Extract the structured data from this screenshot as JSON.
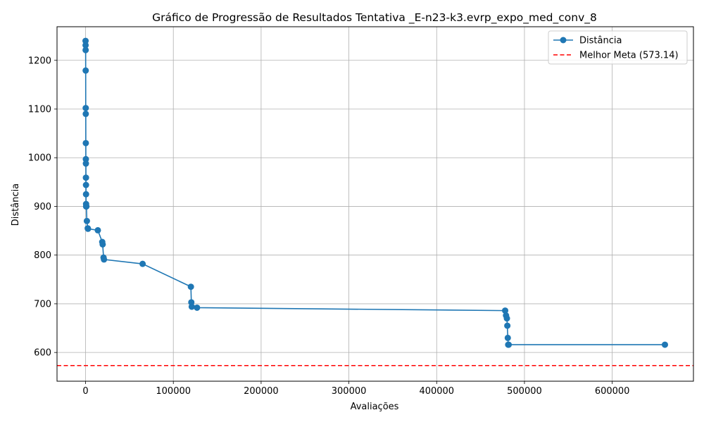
{
  "chart_data": {
    "type": "line",
    "title": "Gráfico de Progressão de Resultados Tentativa _E-n23-k3.evrp_expo_med_conv_8",
    "xlabel": "Avaliações",
    "ylabel": "Distância",
    "xlim": [
      -32500,
      692500
    ],
    "ylim": [
      541,
      1269
    ],
    "xticks": [
      0,
      100000,
      200000,
      300000,
      400000,
      500000,
      600000
    ],
    "xtick_labels": [
      "0",
      "100000",
      "200000",
      "300000",
      "400000",
      "500000",
      "600000"
    ],
    "yticks": [
      600,
      700,
      800,
      900,
      1000,
      1100,
      1200
    ],
    "ytick_labels": [
      "600",
      "700",
      "800",
      "900",
      "1000",
      "1100",
      "1200"
    ],
    "grid": true,
    "legend_position": "top-right",
    "series": [
      {
        "name": "Distância",
        "color": "#1f77b4",
        "marker": "circle",
        "x": [
          0,
          50,
          100,
          150,
          200,
          250,
          300,
          350,
          400,
          450,
          500,
          550,
          600,
          650,
          700,
          1000,
          1500,
          2500,
          2800,
          14000,
          19000,
          19500,
          20500,
          21000,
          65000,
          120000,
          120500,
          121000,
          127000,
          478000,
          479000,
          480000,
          480500,
          481000,
          481500,
          482000,
          660000
        ],
        "y": [
          1240,
          1231,
          1221,
          1179,
          1102,
          1090,
          1030,
          997,
          988,
          959,
          944,
          925,
          905,
          900,
          900,
          900,
          870,
          855,
          854,
          851,
          827,
          822,
          795,
          791,
          782,
          735,
          703,
          694,
          692,
          686,
          676,
          670,
          655,
          630,
          616,
          616,
          616
        ]
      },
      {
        "name": "Melhor Meta (573.14)",
        "color": "#ff0000",
        "style": "dashed",
        "y": 573.14
      }
    ]
  }
}
